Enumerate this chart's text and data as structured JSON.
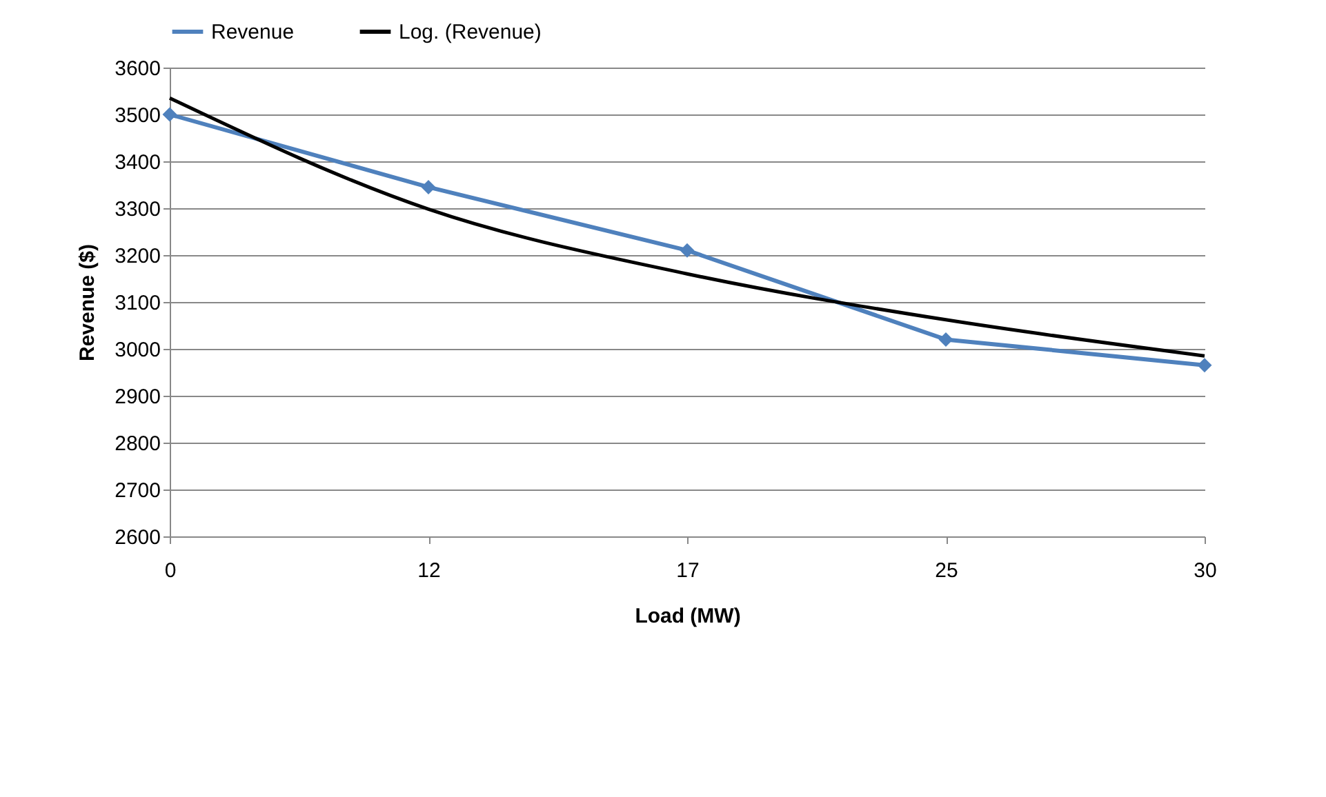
{
  "chart_data": {
    "type": "line",
    "xlabel": "Load (MW)",
    "ylabel": "Revenue ($)",
    "categories": [
      "0",
      "12",
      "17",
      "25",
      "30"
    ],
    "series": [
      {
        "name": "Revenue",
        "color": "#4f81bd",
        "values": [
          3500,
          3345,
          3210,
          3020,
          2965
        ],
        "marker": "diamond"
      },
      {
        "name": "Log. (Revenue)",
        "type": "line",
        "color": "#000000",
        "values": [
          3535,
          3298,
          3160,
          3062,
          2985
        ],
        "marker": "none"
      }
    ],
    "ylim": [
      2600,
      3600
    ],
    "yticks": [
      2600,
      2700,
      2800,
      2900,
      3000,
      3100,
      3200,
      3300,
      3400,
      3500,
      3600
    ],
    "grid": "y",
    "legend": "top"
  }
}
